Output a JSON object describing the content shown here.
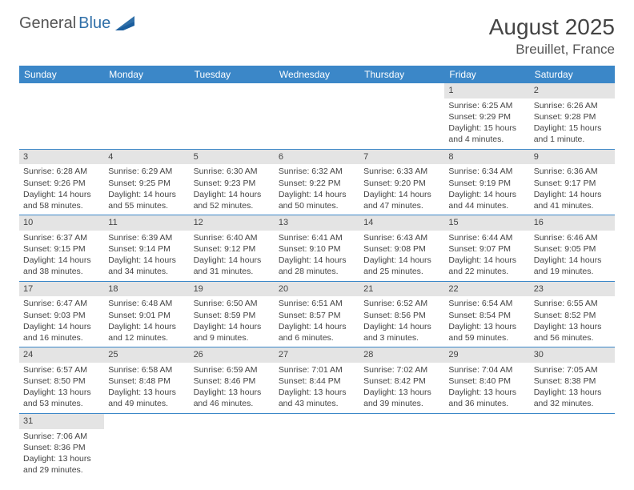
{
  "brand": {
    "part1": "General",
    "part2": "Blue"
  },
  "header": {
    "title": "August 2025",
    "location": "Breuillet, France"
  },
  "colors": {
    "header_bg": "#3b87c8",
    "header_fg": "#ffffff",
    "daynum_bg": "#e4e4e4",
    "rule": "#3b87c8",
    "text": "#444444"
  },
  "weekdays": [
    "Sunday",
    "Monday",
    "Tuesday",
    "Wednesday",
    "Thursday",
    "Friday",
    "Saturday"
  ],
  "weeks": [
    [
      null,
      null,
      null,
      null,
      null,
      {
        "n": "1",
        "sr": "Sunrise: 6:25 AM",
        "ss": "Sunset: 9:29 PM",
        "dl": "Daylight: 15 hours and 4 minutes."
      },
      {
        "n": "2",
        "sr": "Sunrise: 6:26 AM",
        "ss": "Sunset: 9:28 PM",
        "dl": "Daylight: 15 hours and 1 minute."
      }
    ],
    [
      {
        "n": "3",
        "sr": "Sunrise: 6:28 AM",
        "ss": "Sunset: 9:26 PM",
        "dl": "Daylight: 14 hours and 58 minutes."
      },
      {
        "n": "4",
        "sr": "Sunrise: 6:29 AM",
        "ss": "Sunset: 9:25 PM",
        "dl": "Daylight: 14 hours and 55 minutes."
      },
      {
        "n": "5",
        "sr": "Sunrise: 6:30 AM",
        "ss": "Sunset: 9:23 PM",
        "dl": "Daylight: 14 hours and 52 minutes."
      },
      {
        "n": "6",
        "sr": "Sunrise: 6:32 AM",
        "ss": "Sunset: 9:22 PM",
        "dl": "Daylight: 14 hours and 50 minutes."
      },
      {
        "n": "7",
        "sr": "Sunrise: 6:33 AM",
        "ss": "Sunset: 9:20 PM",
        "dl": "Daylight: 14 hours and 47 minutes."
      },
      {
        "n": "8",
        "sr": "Sunrise: 6:34 AM",
        "ss": "Sunset: 9:19 PM",
        "dl": "Daylight: 14 hours and 44 minutes."
      },
      {
        "n": "9",
        "sr": "Sunrise: 6:36 AM",
        "ss": "Sunset: 9:17 PM",
        "dl": "Daylight: 14 hours and 41 minutes."
      }
    ],
    [
      {
        "n": "10",
        "sr": "Sunrise: 6:37 AM",
        "ss": "Sunset: 9:15 PM",
        "dl": "Daylight: 14 hours and 38 minutes."
      },
      {
        "n": "11",
        "sr": "Sunrise: 6:39 AM",
        "ss": "Sunset: 9:14 PM",
        "dl": "Daylight: 14 hours and 34 minutes."
      },
      {
        "n": "12",
        "sr": "Sunrise: 6:40 AM",
        "ss": "Sunset: 9:12 PM",
        "dl": "Daylight: 14 hours and 31 minutes."
      },
      {
        "n": "13",
        "sr": "Sunrise: 6:41 AM",
        "ss": "Sunset: 9:10 PM",
        "dl": "Daylight: 14 hours and 28 minutes."
      },
      {
        "n": "14",
        "sr": "Sunrise: 6:43 AM",
        "ss": "Sunset: 9:08 PM",
        "dl": "Daylight: 14 hours and 25 minutes."
      },
      {
        "n": "15",
        "sr": "Sunrise: 6:44 AM",
        "ss": "Sunset: 9:07 PM",
        "dl": "Daylight: 14 hours and 22 minutes."
      },
      {
        "n": "16",
        "sr": "Sunrise: 6:46 AM",
        "ss": "Sunset: 9:05 PM",
        "dl": "Daylight: 14 hours and 19 minutes."
      }
    ],
    [
      {
        "n": "17",
        "sr": "Sunrise: 6:47 AM",
        "ss": "Sunset: 9:03 PM",
        "dl": "Daylight: 14 hours and 16 minutes."
      },
      {
        "n": "18",
        "sr": "Sunrise: 6:48 AM",
        "ss": "Sunset: 9:01 PM",
        "dl": "Daylight: 14 hours and 12 minutes."
      },
      {
        "n": "19",
        "sr": "Sunrise: 6:50 AM",
        "ss": "Sunset: 8:59 PM",
        "dl": "Daylight: 14 hours and 9 minutes."
      },
      {
        "n": "20",
        "sr": "Sunrise: 6:51 AM",
        "ss": "Sunset: 8:57 PM",
        "dl": "Daylight: 14 hours and 6 minutes."
      },
      {
        "n": "21",
        "sr": "Sunrise: 6:52 AM",
        "ss": "Sunset: 8:56 PM",
        "dl": "Daylight: 14 hours and 3 minutes."
      },
      {
        "n": "22",
        "sr": "Sunrise: 6:54 AM",
        "ss": "Sunset: 8:54 PM",
        "dl": "Daylight: 13 hours and 59 minutes."
      },
      {
        "n": "23",
        "sr": "Sunrise: 6:55 AM",
        "ss": "Sunset: 8:52 PM",
        "dl": "Daylight: 13 hours and 56 minutes."
      }
    ],
    [
      {
        "n": "24",
        "sr": "Sunrise: 6:57 AM",
        "ss": "Sunset: 8:50 PM",
        "dl": "Daylight: 13 hours and 53 minutes."
      },
      {
        "n": "25",
        "sr": "Sunrise: 6:58 AM",
        "ss": "Sunset: 8:48 PM",
        "dl": "Daylight: 13 hours and 49 minutes."
      },
      {
        "n": "26",
        "sr": "Sunrise: 6:59 AM",
        "ss": "Sunset: 8:46 PM",
        "dl": "Daylight: 13 hours and 46 minutes."
      },
      {
        "n": "27",
        "sr": "Sunrise: 7:01 AM",
        "ss": "Sunset: 8:44 PM",
        "dl": "Daylight: 13 hours and 43 minutes."
      },
      {
        "n": "28",
        "sr": "Sunrise: 7:02 AM",
        "ss": "Sunset: 8:42 PM",
        "dl": "Daylight: 13 hours and 39 minutes."
      },
      {
        "n": "29",
        "sr": "Sunrise: 7:04 AM",
        "ss": "Sunset: 8:40 PM",
        "dl": "Daylight: 13 hours and 36 minutes."
      },
      {
        "n": "30",
        "sr": "Sunrise: 7:05 AM",
        "ss": "Sunset: 8:38 PM",
        "dl": "Daylight: 13 hours and 32 minutes."
      }
    ],
    [
      {
        "n": "31",
        "sr": "Sunrise: 7:06 AM",
        "ss": "Sunset: 8:36 PM",
        "dl": "Daylight: 13 hours and 29 minutes."
      },
      null,
      null,
      null,
      null,
      null,
      null
    ]
  ]
}
